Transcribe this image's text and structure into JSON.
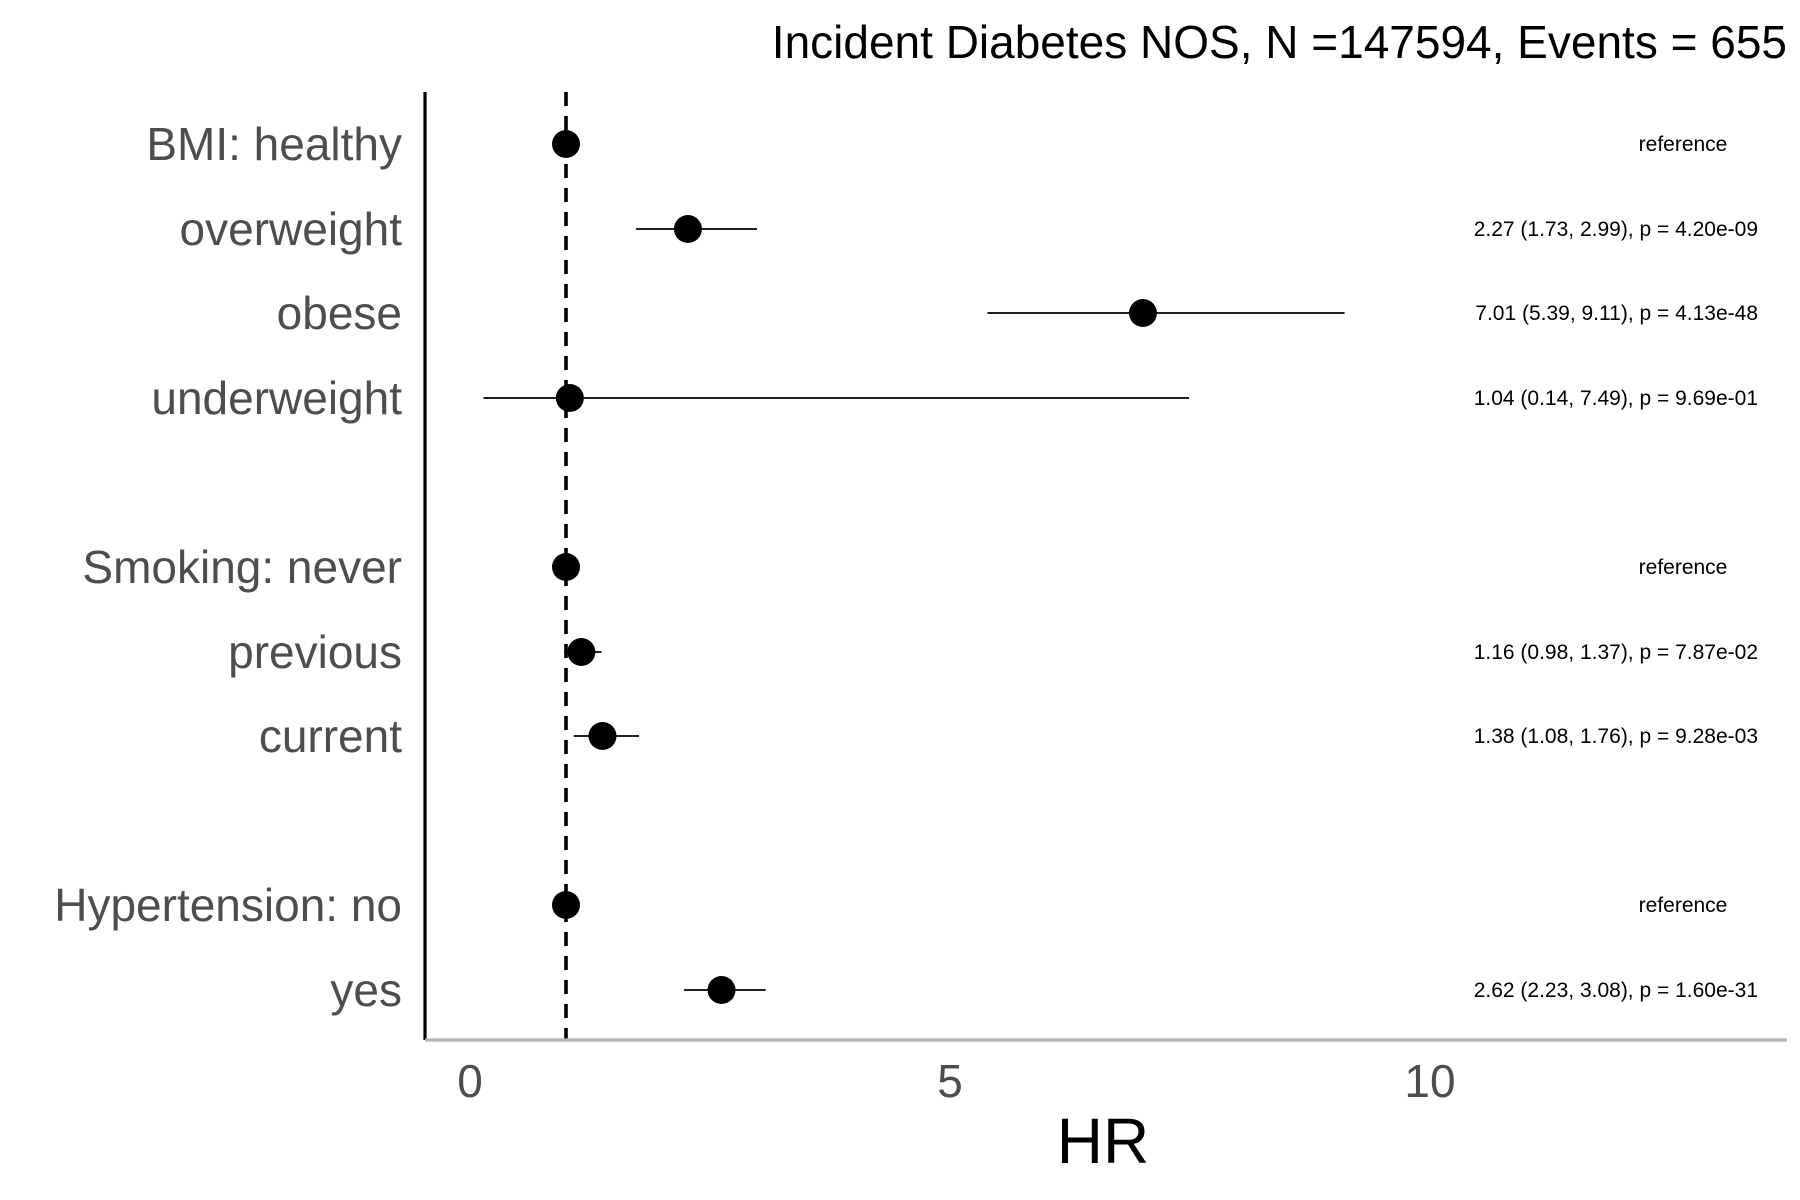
{
  "chart_data": {
    "type": "forest",
    "title": "Incident Diabetes NOS, N =147594, Events = 655",
    "xlabel": "HR",
    "xlim": [
      -0.5,
      13.7
    ],
    "xticks": [
      0,
      5,
      10
    ],
    "reference_value": 1,
    "rows": [
      {
        "label": "BMI: healthy",
        "hr": 1.0,
        "lo": null,
        "hi": null,
        "annotation": "reference"
      },
      {
        "label": "overweight",
        "hr": 2.27,
        "lo": 1.73,
        "hi": 2.99,
        "annotation": "2.27 (1.73, 2.99), p = 4.20e-09"
      },
      {
        "label": "obese",
        "hr": 7.01,
        "lo": 5.39,
        "hi": 9.11,
        "annotation": "7.01 (5.39, 9.11), p = 4.13e-48"
      },
      {
        "label": "underweight",
        "hr": 1.04,
        "lo": 0.14,
        "hi": 7.49,
        "annotation": "1.04 (0.14, 7.49), p = 9.69e-01"
      },
      {
        "label": "Smoking: never",
        "hr": 1.0,
        "lo": null,
        "hi": null,
        "annotation": "reference"
      },
      {
        "label": "previous",
        "hr": 1.16,
        "lo": 0.98,
        "hi": 1.37,
        "annotation": "1.16 (0.98, 1.37), p = 7.87e-02"
      },
      {
        "label": "current",
        "hr": 1.38,
        "lo": 1.08,
        "hi": 1.76,
        "annotation": "1.38 (1.08, 1.76), p = 9.28e-03"
      },
      {
        "label": "Hypertension: no",
        "hr": 1.0,
        "lo": null,
        "hi": null,
        "annotation": "reference"
      },
      {
        "label": "yes",
        "hr": 2.62,
        "lo": 2.23,
        "hi": 3.08,
        "annotation": "2.62 (2.23, 3.08), p = 1.60e-31"
      }
    ]
  }
}
